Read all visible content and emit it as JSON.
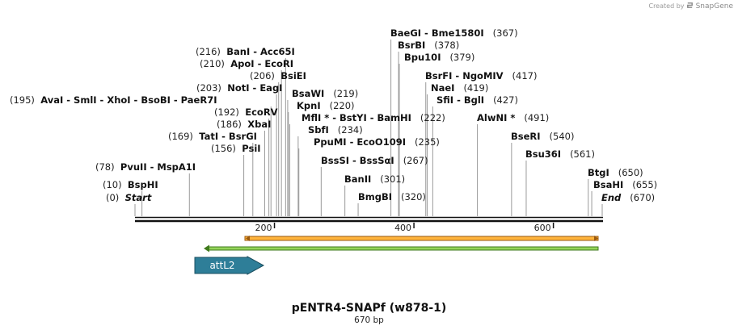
{
  "credit": {
    "prefix": "Created by",
    "brand": "SnapGene"
  },
  "map": {
    "title": "pENTR4-SNAPf (w878-1)",
    "length_label": "670 bp",
    "length": 670,
    "ticks": [
      200,
      400,
      600
    ],
    "sites": [
      {
        "pos": "(0)",
        "label": "Start",
        "bp": 0,
        "special": true
      },
      {
        "pos": "(10)",
        "label": "BspHI",
        "bp": 10
      },
      {
        "pos": "(78)",
        "label": "PvuII  - MspA1I",
        "bp": 78
      },
      {
        "pos": "(156)",
        "label": "PsiI",
        "bp": 156
      },
      {
        "pos": "(169)",
        "label": "TatI  - BsrGI",
        "bp": 169
      },
      {
        "pos": "(186)",
        "label": "XbaI",
        "bp": 186
      },
      {
        "pos": "(192)",
        "label": "EcoRV",
        "bp": 192
      },
      {
        "pos": "(195)",
        "label": "AvaI  - SmlI  - XhoI  - BsoBI  - PaeR7I",
        "bp": 195
      },
      {
        "pos": "(203)",
        "label": "NotI  - EagI",
        "bp": 203
      },
      {
        "pos": "(206)",
        "label": "BsiEI",
        "bp": 206
      },
      {
        "pos": "(210)",
        "label": "ApoI  - EcoRI",
        "bp": 210
      },
      {
        "pos": "(216)",
        "label": "BanI  - Acc65I",
        "bp": 216
      },
      {
        "pos": "(219)",
        "label": "BsaWI",
        "bp": 219
      },
      {
        "pos": "(220)",
        "label": "KpnI",
        "bp": 220
      },
      {
        "pos": "(222)",
        "label": "MflI * - BstYI  - BamHI",
        "bp": 222
      },
      {
        "pos": "(234)",
        "label": "SbfI",
        "bp": 234
      },
      {
        "pos": "(235)",
        "label": "PpuMI  - EcoO109I",
        "bp": 235
      },
      {
        "pos": "(267)",
        "label": "BssSI  - BssSαI",
        "bp": 267
      },
      {
        "pos": "(301)",
        "label": "BanII",
        "bp": 301
      },
      {
        "pos": "(320)",
        "label": "BmgBI",
        "bp": 320
      },
      {
        "pos": "(367)",
        "label": "BaeGI  - Bme1580I",
        "bp": 367
      },
      {
        "pos": "(378)",
        "label": "BsrBI",
        "bp": 378
      },
      {
        "pos": "(379)",
        "label": "Bpu10I",
        "bp": 379
      },
      {
        "pos": "(417)",
        "label": "BsrFI  - NgoMIV",
        "bp": 417
      },
      {
        "pos": "(419)",
        "label": "NaeI",
        "bp": 419
      },
      {
        "pos": "(427)",
        "label": "SfiI  - BglI",
        "bp": 427
      },
      {
        "pos": "(491)",
        "label": "AlwNI *",
        "bp": 491
      },
      {
        "pos": "(540)",
        "label": "BseRI",
        "bp": 540
      },
      {
        "pos": "(561)",
        "label": "Bsu36I",
        "bp": 561
      },
      {
        "pos": "(650)",
        "label": "BtgI",
        "bp": 650
      },
      {
        "pos": "(655)",
        "label": "BsaHI",
        "bp": 655
      },
      {
        "pos": "(670)",
        "label": "End",
        "bp": 670,
        "special": true
      }
    ],
    "features": [
      {
        "name": "attL2",
        "start": 87,
        "end": 186,
        "color": "#2e7e98"
      }
    ],
    "orf_band_color": "#ffb43c",
    "green_band_color": "#94d45a"
  }
}
